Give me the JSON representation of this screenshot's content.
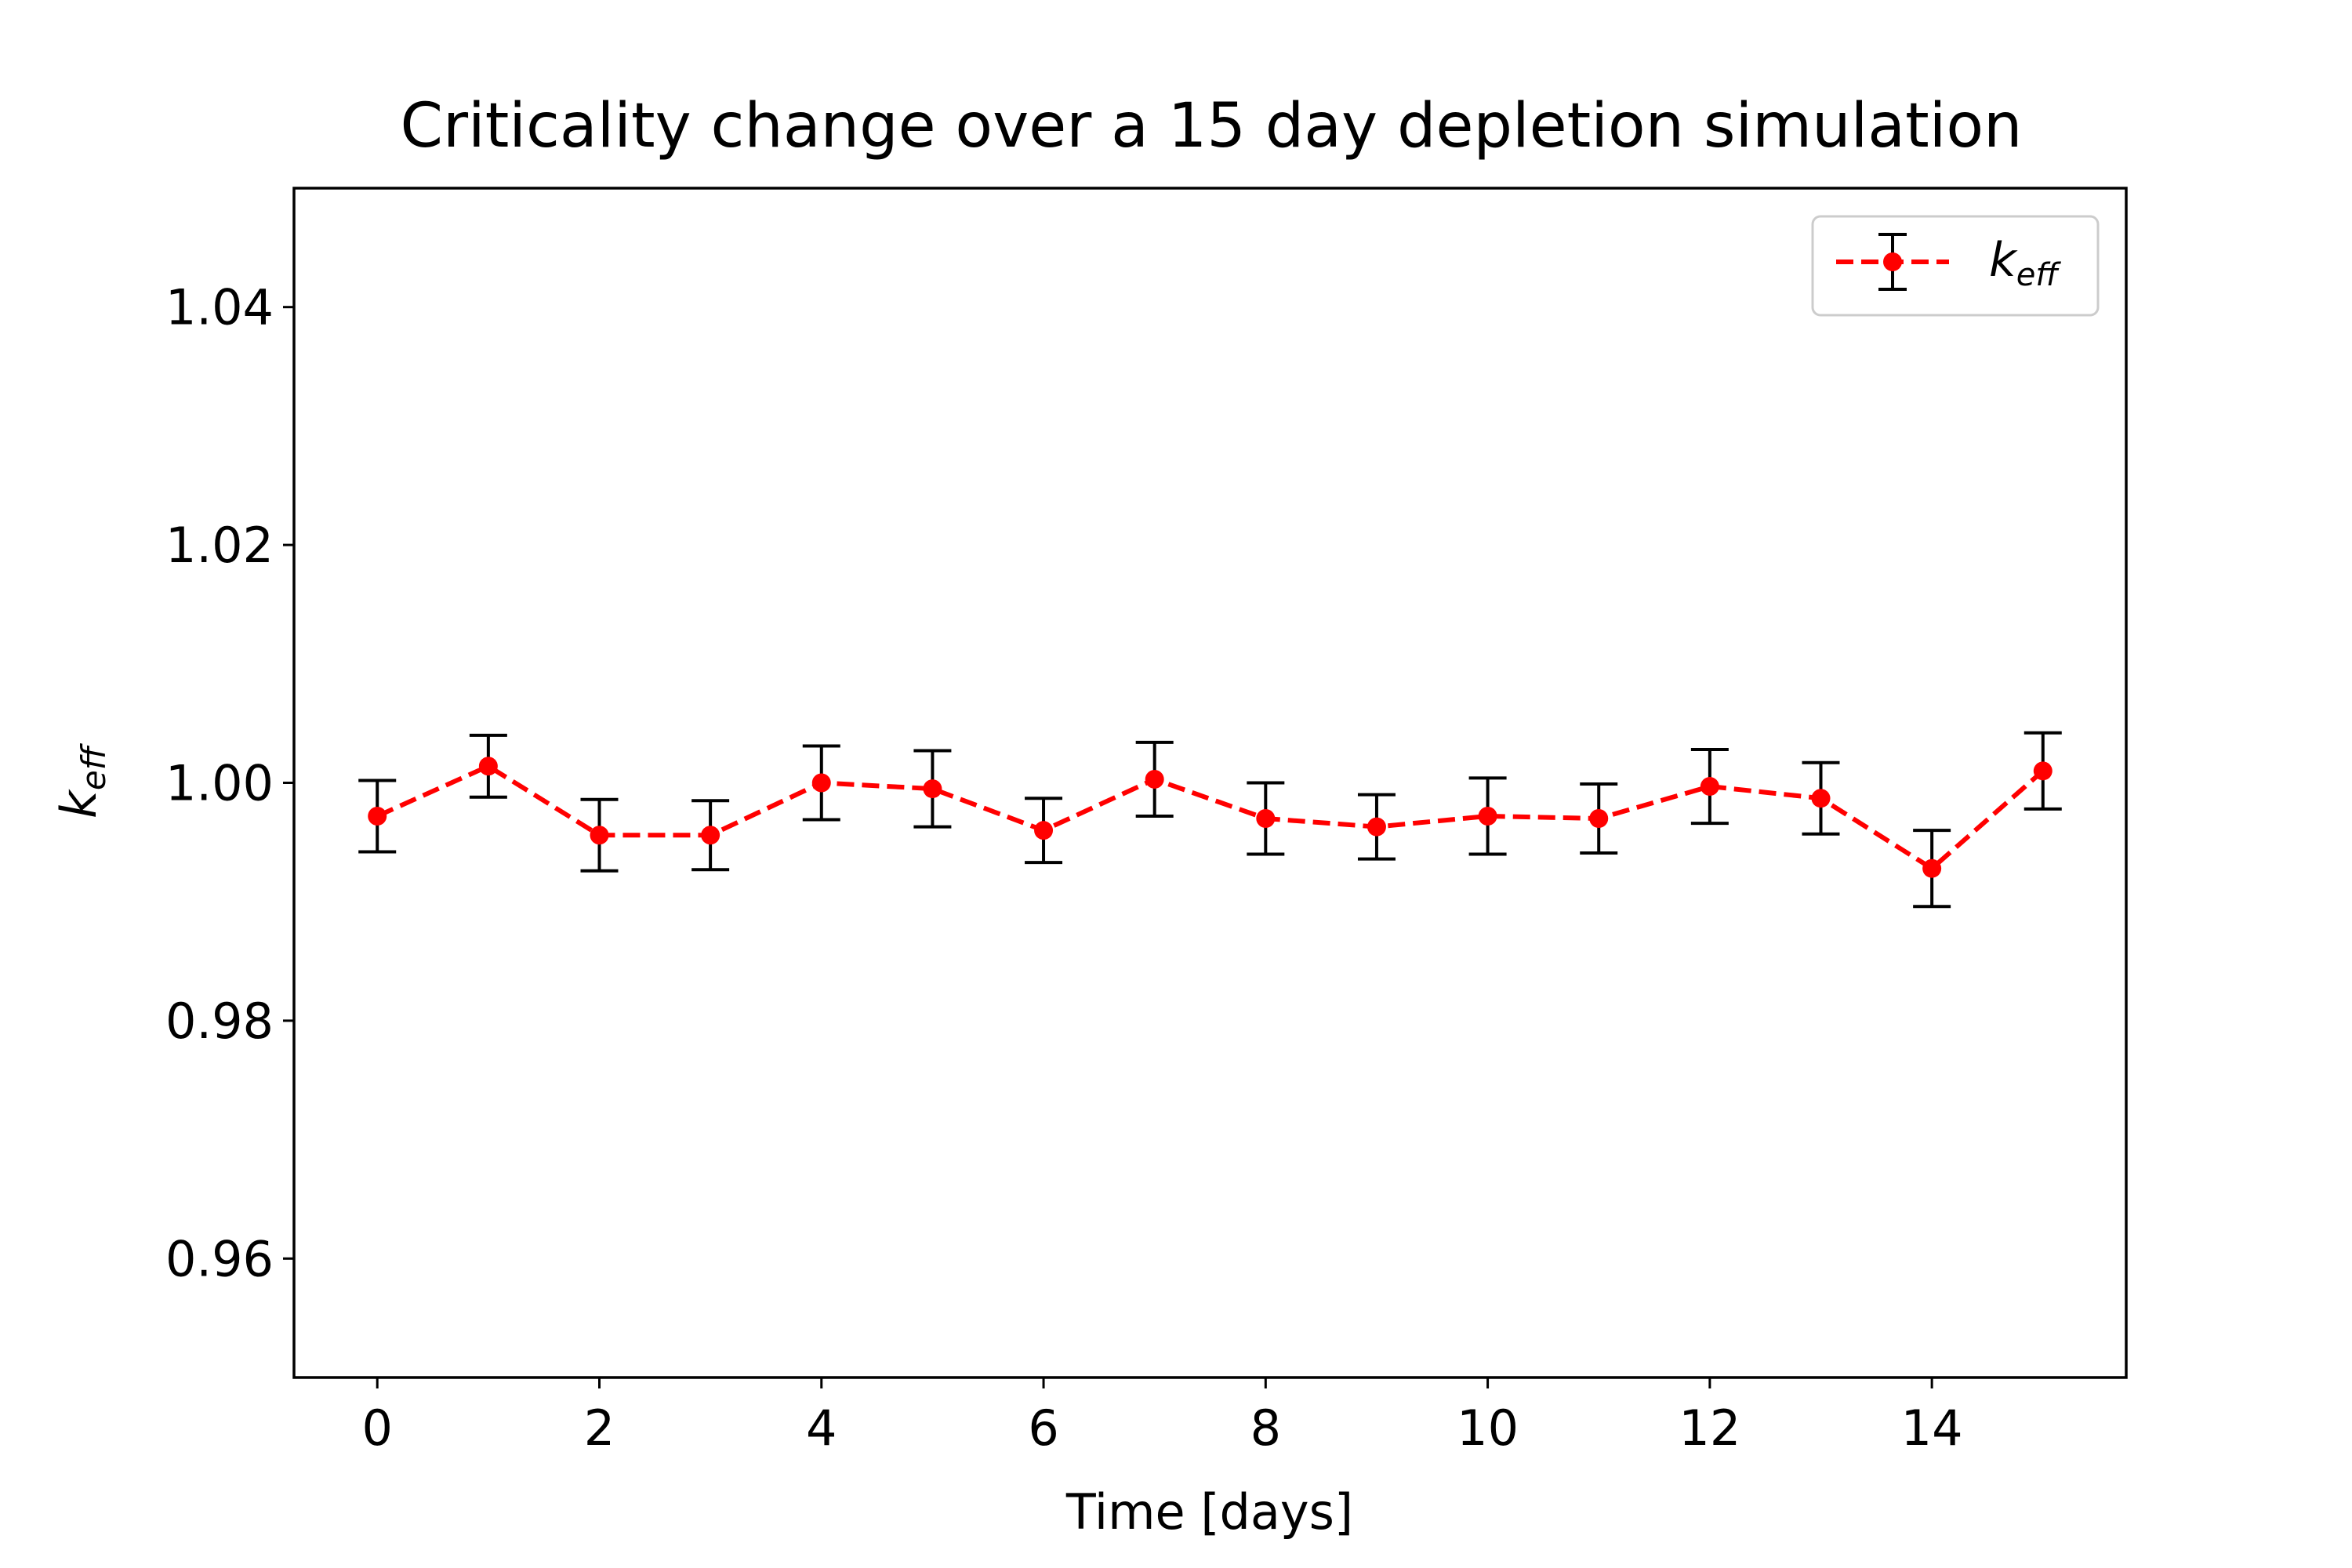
{
  "chart_data": {
    "type": "line",
    "title": "Criticality change over a 15 day depletion simulation",
    "xlabel": "Time [days]",
    "ylabel": {
      "base": "k",
      "sub": "eff"
    },
    "xlim": [
      -0.75,
      15.75
    ],
    "ylim": [
      0.95,
      1.05
    ],
    "xticks": [
      0,
      2,
      4,
      6,
      8,
      10,
      12,
      14
    ],
    "yticks": [
      0.96,
      0.98,
      1.0,
      1.02,
      1.04
    ],
    "ytick_labels": [
      "0.96",
      "0.98",
      "1.00",
      "1.02",
      "1.04"
    ],
    "grid": false,
    "legend_position": "top-right",
    "series": [
      {
        "name": {
          "base": "k",
          "sub": "eff"
        },
        "color": "#ff0000",
        "errorbar_color": "#000000",
        "linestyle": "dashed",
        "marker": "circle",
        "x": [
          0,
          1,
          2,
          3,
          4,
          5,
          6,
          7,
          8,
          9,
          10,
          11,
          12,
          13,
          14,
          15
        ],
        "y": [
          0.9972,
          1.0014,
          0.9956,
          0.9956,
          1.0,
          0.9995,
          0.996,
          1.0003,
          0.997,
          0.9963,
          0.9972,
          0.997,
          0.9997,
          0.9987,
          0.9928,
          1.001
        ],
        "yerr": [
          0.003,
          0.0026,
          0.003,
          0.0029,
          0.0031,
          0.0032,
          0.0027,
          0.0031,
          0.003,
          0.0027,
          0.0032,
          0.0029,
          0.0031,
          0.003,
          0.0032,
          0.0032
        ]
      }
    ]
  }
}
